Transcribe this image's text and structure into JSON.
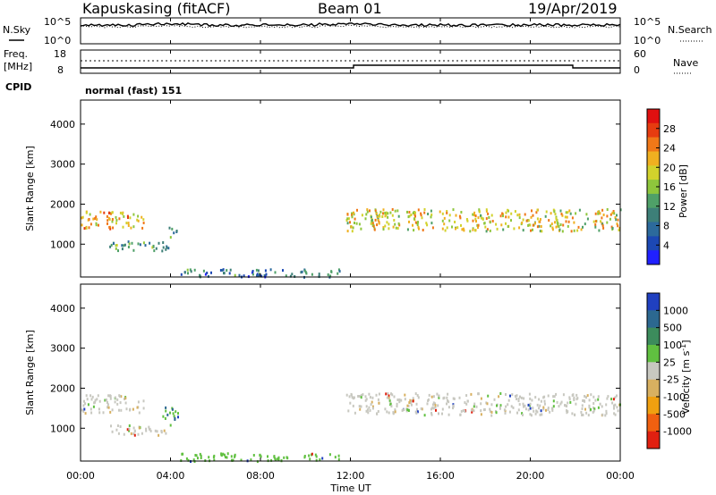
{
  "header": {
    "station": "Kapuskasing (fitACF)",
    "beam": "Beam 01",
    "date": "19/Apr/2019"
  },
  "labels": {
    "nsky": "N.Sky",
    "nsearch": "N.Search",
    "freq_line1": "Freq.",
    "freq_line2": "[MHz]",
    "nave": "Nave",
    "cpid": "CPID",
    "cpid_value": "normal (fast) 151",
    "ylabel": "Slant Range [km]",
    "xlabel": "Time UT",
    "power_label": "Power [dB]",
    "velocity_label": "Velocity [m s",
    "velocity_sup": "-1",
    "velocity_close": "]"
  },
  "noise_axis": {
    "left": [
      "10^5",
      "10^0"
    ],
    "right": [
      "10^5",
      "10^0"
    ]
  },
  "freq_axis": {
    "left": [
      "18",
      "8"
    ],
    "right": [
      "60",
      "0"
    ]
  },
  "power_scale": {
    "ticks": [
      "28",
      "24",
      "20",
      "16",
      "12",
      "8",
      "4"
    ],
    "colors": [
      "#2020ff",
      "#1c48b4",
      "#2c6a9c",
      "#3d7f78",
      "#4fa068",
      "#8ec63c",
      "#d2d22c",
      "#f0b020",
      "#f07818",
      "#e63c10",
      "#e01010"
    ]
  },
  "velocity_scale": {
    "ticks": [
      "1000",
      "500",
      "100",
      "25",
      "-25",
      "-100",
      "-500",
      "-1000"
    ],
    "colors": [
      "#2040c0",
      "#2c6890",
      "#3c8c5c",
      "#60c040",
      "#c8c8c0",
      "#d8b060",
      "#f0a010",
      "#f06010",
      "#e02010"
    ]
  },
  "chart_data": [
    {
      "type": "heatmap",
      "name": "power",
      "x": [
        "00:00",
        "04:00",
        "08:00",
        "12:00",
        "16:00",
        "20:00",
        "00:00"
      ],
      "y_ticks": [
        "4000",
        "3000",
        "2000",
        "1000"
      ],
      "ylim": [
        180,
        4600
      ],
      "xlim_hours": [
        0,
        24
      ],
      "value_range_db": [
        0,
        32
      ],
      "echo_regions": [
        {
          "t_start": 0.0,
          "t_end": 2.8,
          "range_start": 1400,
          "range_end": 1850,
          "value": 22
        },
        {
          "t_start": 1.2,
          "t_end": 3.9,
          "range_start": 850,
          "range_end": 1100,
          "value": 12
        },
        {
          "t_start": 3.8,
          "t_end": 4.3,
          "range_start": 1200,
          "range_end": 1450,
          "value": 12
        },
        {
          "t_start": 11.8,
          "t_end": 24.0,
          "range_start": 1350,
          "range_end": 1900,
          "value": 20
        },
        {
          "t_start": 4.4,
          "t_end": 11.5,
          "range_start": 200,
          "range_end": 400,
          "value": 8
        }
      ]
    },
    {
      "type": "heatmap",
      "name": "velocity",
      "x": [
        "00:00",
        "04:00",
        "08:00",
        "12:00",
        "16:00",
        "20:00",
        "00:00"
      ],
      "y_ticks": [
        "4000",
        "3000",
        "2000",
        "1000"
      ],
      "ylim": [
        180,
        4600
      ],
      "xlim_hours": [
        0,
        24
      ],
      "value_range_ms": [
        -1000,
        1000
      ],
      "echo_regions": [
        {
          "t_start": 0.0,
          "t_end": 2.8,
          "range_start": 1400,
          "range_end": 1850,
          "value": 0
        },
        {
          "t_start": 1.2,
          "t_end": 3.9,
          "range_start": 850,
          "range_end": 1100,
          "value": 0
        },
        {
          "t_start": 3.6,
          "t_end": 4.3,
          "range_start": 1100,
          "range_end": 1550,
          "value": 80
        },
        {
          "t_start": 11.8,
          "t_end": 24.0,
          "range_start": 1350,
          "range_end": 1900,
          "value": 0
        },
        {
          "t_start": 4.4,
          "t_end": 11.5,
          "range_start": 200,
          "range_end": 400,
          "value": 60
        }
      ]
    }
  ]
}
